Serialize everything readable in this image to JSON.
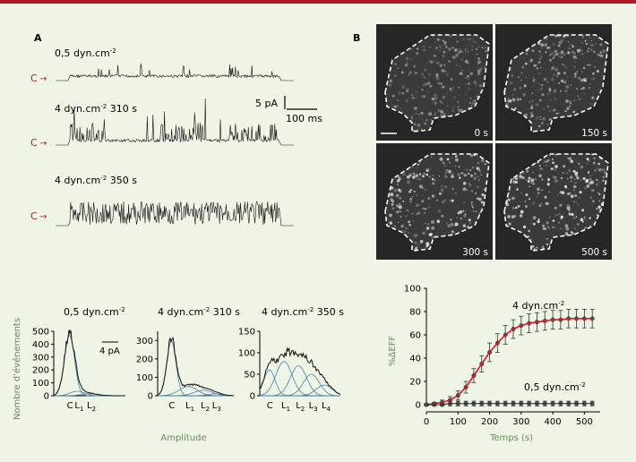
{
  "panelA": {
    "label": "A",
    "closed_marker": "C",
    "traces": [
      {
        "title_main": "0,5 dyn.cm",
        "title_sup": "-2",
        "title_suffix": ""
      },
      {
        "title_main": "4 dyn.cm",
        "title_sup": "-2",
        "title_suffix": " 310 s"
      },
      {
        "title_main": "4 dyn.cm",
        "title_sup": "-2",
        "title_suffix": " 350 s"
      }
    ],
    "scalebar": {
      "current": "5 pA",
      "time": "100 ms"
    }
  },
  "panelB": {
    "label": "B",
    "images": [
      {
        "time": "0 s"
      },
      {
        "time": "150 s"
      },
      {
        "time": "300 s"
      },
      {
        "time": "500 s"
      }
    ]
  },
  "histograms": {
    "ylabel": "Nombre d'événements",
    "xlabel": "Amplitude",
    "scalebar": "4 pA",
    "panels": [
      {
        "title_main": "0,5 dyn.cm",
        "title_sup": "-2",
        "title_suffix": "",
        "yticks": [
          "0",
          "100",
          "200",
          "300",
          "400",
          "500"
        ],
        "xlabels": [
          {
            "main": "C",
            "sub": ""
          },
          {
            "main": "L",
            "sub": "1"
          },
          {
            "main": "L",
            "sub": "2"
          }
        ]
      },
      {
        "title_main": "4 dyn.cm",
        "title_sup": "-2",
        "title_suffix": " 310 s",
        "yticks": [
          "0",
          "100",
          "200",
          "300"
        ],
        "xlabels": [
          {
            "main": "C",
            "sub": ""
          },
          {
            "main": "L",
            "sub": "1"
          },
          {
            "main": "L",
            "sub": "2"
          },
          {
            "main": "L",
            "sub": "3"
          }
        ]
      },
      {
        "title_main": "4 dyn.cm",
        "title_sup": "-2",
        "title_suffix": " 350 s",
        "yticks": [
          "0",
          "50",
          "100",
          "150"
        ],
        "xlabels": [
          {
            "main": "C",
            "sub": ""
          },
          {
            "main": "L",
            "sub": "1"
          },
          {
            "main": "L",
            "sub": "2"
          },
          {
            "main": "L",
            "sub": "3"
          },
          {
            "main": "L",
            "sub": "4"
          }
        ]
      }
    ]
  },
  "chart_data": {
    "type": "line",
    "xlabel": "Temps (s)",
    "ylabel": "%ΔEFF",
    "xlim": [
      0,
      550
    ],
    "ylim": [
      0,
      100
    ],
    "xticks": [
      0,
      100,
      200,
      300,
      400,
      500
    ],
    "yticks": [
      0,
      20,
      40,
      60,
      80,
      100
    ],
    "series": [
      {
        "name": "4 dyn.cm-2",
        "x": [
          0,
          25,
          50,
          75,
          100,
          125,
          150,
          175,
          200,
          225,
          250,
          275,
          300,
          325,
          350,
          375,
          400,
          425,
          450,
          475,
          500,
          525
        ],
        "y": [
          0,
          1,
          2,
          4,
          8,
          15,
          25,
          35,
          45,
          53,
          60,
          65,
          68,
          70,
          71,
          72,
          73,
          73,
          74,
          74,
          74,
          74
        ],
        "err": [
          1,
          1,
          2,
          3,
          4,
          5,
          6,
          7,
          8,
          8,
          8,
          8,
          8,
          8,
          8,
          8,
          8,
          8,
          8,
          8,
          8,
          8
        ],
        "color": "#333333",
        "fit_color": "#e0141e"
      },
      {
        "name": "0,5 dyn.cm-2",
        "x": [
          0,
          25,
          50,
          75,
          100,
          125,
          150,
          175,
          200,
          225,
          250,
          275,
          300,
          325,
          350,
          375,
          400,
          425,
          450,
          475,
          500,
          525
        ],
        "y": [
          0,
          0,
          0,
          1,
          1,
          1,
          1,
          1,
          1,
          1,
          1,
          1,
          1,
          1,
          1,
          1,
          1,
          1,
          1,
          1,
          1,
          1
        ],
        "err": [
          1,
          1,
          1,
          2,
          2,
          2,
          2,
          2,
          2,
          2,
          2,
          2,
          2,
          2,
          2,
          2,
          2,
          2,
          2,
          2,
          2,
          2
        ],
        "color": "#222222"
      }
    ],
    "annotations": [
      {
        "text_main": "4 dyn.cm",
        "text_sup": "-2"
      },
      {
        "text_main": "0,5 dyn.cm",
        "text_sup": "-2"
      }
    ]
  },
  "colors": {
    "background": "#eef5e6",
    "accent": "#b0152a",
    "fit": "#e0141e",
    "gaussian": "#4d7fa6",
    "axis_label": "#6b8a5a",
    "image_bg": "#262626"
  }
}
